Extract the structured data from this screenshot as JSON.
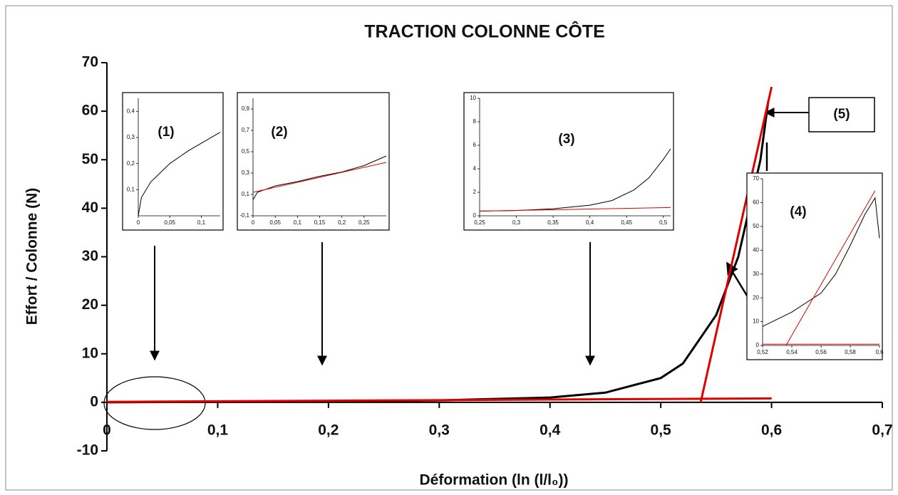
{
  "chart_data": [
    {
      "type": "line",
      "title": "TRACTION COLONNE CÔTE",
      "ylabel": "Effort / Colonne (N)",
      "xlabel": "Déformation (ln (l/l₀))",
      "xlim": [
        0,
        0.7
      ],
      "ylim": [
        -10,
        70
      ],
      "xticks": [
        0,
        {
          "value": 0.1,
          "label": "0,1"
        },
        {
          "value": 0.2,
          "label": "0,2"
        },
        {
          "value": 0.3,
          "label": "0,3"
        },
        {
          "value": 0.4,
          "label": "0,4"
        },
        {
          "value": 0.5,
          "label": "0,5"
        },
        {
          "value": 0.6,
          "label": "0,6"
        },
        {
          "value": 0.7,
          "label": "0,7"
        }
      ],
      "yticks": [
        -10,
        0,
        10,
        20,
        30,
        40,
        50,
        60,
        70
      ],
      "series": [
        {
          "color": "#000000",
          "x": [
            0,
            0.1,
            0.2,
            0.3,
            0.4,
            0.45,
            0.5,
            0.52,
            0.55,
            0.57,
            0.59,
            0.597
          ],
          "values": [
            0,
            0.1,
            0.2,
            0.4,
            1,
            2,
            5,
            8,
            18,
            30,
            50,
            62
          ]
        },
        {
          "color": "#e00000",
          "x": [
            0.536,
            0.6
          ],
          "values": [
            0,
            65
          ]
        },
        {
          "color": "#e00000",
          "x": [
            0,
            0.6
          ],
          "values": [
            0.1,
            0.8
          ]
        }
      ],
      "annotations": [
        "(5)"
      ]
    },
    {
      "type": "line",
      "annotations": [
        "(1)"
      ],
      "xlim": [
        0,
        0.13
      ],
      "ylim": [
        0,
        0.45
      ],
      "xticks": [
        0,
        {
          "value": 0.05,
          "label": "0,05"
        },
        {
          "value": 0.1,
          "label": "0,1"
        }
      ],
      "yticks": [
        {
          "value": 0.1,
          "label": "0,1"
        },
        {
          "value": 0.2,
          "label": "0,2"
        },
        {
          "value": 0.3,
          "label": "0,3"
        },
        {
          "value": 0.4,
          "label": "0,4"
        }
      ],
      "series": [
        {
          "color": "#000000",
          "x": [
            0,
            0.005,
            0.02,
            0.05,
            0.08,
            0.13
          ],
          "values": [
            0,
            0.07,
            0.13,
            0.2,
            0.25,
            0.32
          ]
        }
      ]
    },
    {
      "type": "line",
      "annotations": [
        "(2)"
      ],
      "xlim": [
        0,
        0.3
      ],
      "ylim": [
        -0.1,
        1.0
      ],
      "xticks": [
        0,
        {
          "value": 0.05,
          "label": "0,05"
        },
        {
          "value": 0.1,
          "label": "0,1"
        },
        {
          "value": 0.15,
          "label": "0,15"
        },
        {
          "value": 0.2,
          "label": "0,2"
        },
        {
          "value": 0.25,
          "label": "0,25"
        }
      ],
      "yticks": [
        {
          "value": -0.1,
          "label": "-0,1"
        },
        {
          "value": 0.1,
          "label": "0,1"
        },
        {
          "value": 0.3,
          "label": "0,3"
        },
        {
          "value": 0.5,
          "label": "0,5"
        },
        {
          "value": 0.7,
          "label": "0,7"
        },
        {
          "value": 0.9,
          "label": "0,9"
        }
      ],
      "series": [
        {
          "color": "#000000",
          "x": [
            0,
            0.01,
            0.05,
            0.1,
            0.15,
            0.2,
            0.25,
            0.3
          ],
          "values": [
            0.05,
            0.12,
            0.18,
            0.22,
            0.27,
            0.31,
            0.37,
            0.46
          ]
        },
        {
          "color": "#e00000",
          "x": [
            0,
            0.3
          ],
          "values": [
            0.12,
            0.4
          ]
        }
      ]
    },
    {
      "type": "line",
      "annotations": [
        "(3)"
      ],
      "xlim": [
        0.25,
        0.51
      ],
      "ylim": [
        0,
        10
      ],
      "xticks": [
        {
          "value": 0.25,
          "label": "0,25"
        },
        {
          "value": 0.3,
          "label": "0,3"
        },
        {
          "value": 0.35,
          "label": "0,35"
        },
        {
          "value": 0.4,
          "label": "0,4"
        },
        {
          "value": 0.45,
          "label": "0,45"
        },
        {
          "value": 0.5,
          "label": "0,5"
        }
      ],
      "yticks": [
        0,
        2,
        4,
        6,
        8,
        10
      ],
      "series": [
        {
          "color": "#000000",
          "x": [
            0.25,
            0.3,
            0.35,
            0.4,
            0.43,
            0.46,
            0.48,
            0.5,
            0.51
          ],
          "values": [
            0.4,
            0.45,
            0.6,
            0.9,
            1.3,
            2.2,
            3.2,
            4.8,
            5.7
          ]
        },
        {
          "color": "#e00000",
          "x": [
            0.25,
            0.51
          ],
          "values": [
            0.4,
            0.7
          ]
        }
      ]
    },
    {
      "type": "line",
      "annotations": [
        "(4)"
      ],
      "xlim": [
        0.52,
        0.6
      ],
      "ylim": [
        0,
        70
      ],
      "xticks": [
        {
          "value": 0.52,
          "label": "0,52"
        },
        {
          "value": 0.54,
          "label": "0,54"
        },
        {
          "value": 0.56,
          "label": "0,56"
        },
        {
          "value": 0.58,
          "label": "0,58"
        },
        {
          "value": 0.6,
          "label": "0,6"
        }
      ],
      "yticks": [
        0,
        10,
        20,
        30,
        40,
        50,
        60,
        70
      ],
      "series": [
        {
          "color": "#000000",
          "x": [
            0.52,
            0.54,
            0.56,
            0.57,
            0.58,
            0.59,
            0.597,
            0.6
          ],
          "values": [
            8,
            14,
            22,
            30,
            42,
            55,
            62,
            45
          ]
        },
        {
          "color": "#e00000",
          "x": [
            0.536,
            0.597
          ],
          "values": [
            0,
            65
          ]
        },
        {
          "color": "#e00000",
          "x": [
            0.52,
            0.6
          ],
          "values": [
            0.5,
            0.5
          ]
        }
      ]
    }
  ]
}
